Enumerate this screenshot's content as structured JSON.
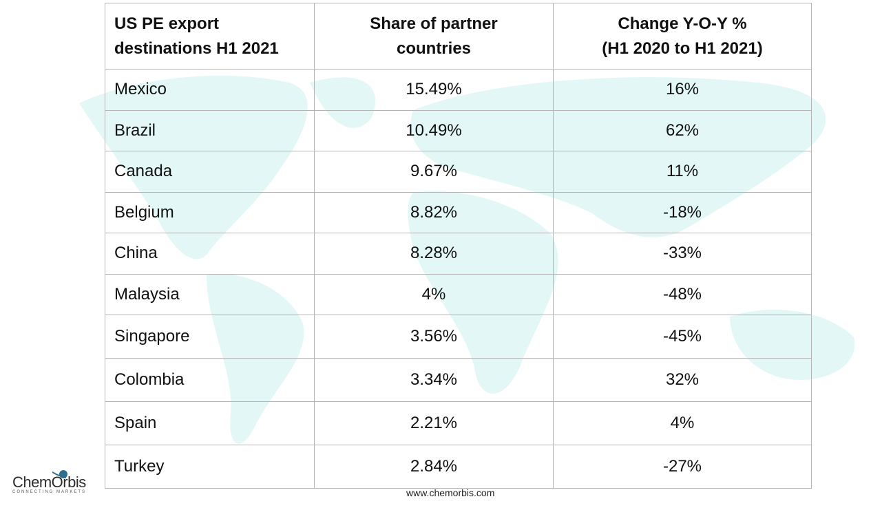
{
  "chart_data": {
    "type": "table",
    "columns": [
      "US PE export destinations H1 2021",
      "Share of partner countries",
      "Change Y-O-Y % (H1 2020 to H1 2021)"
    ],
    "header_lines": [
      [
        "US PE export",
        "destinations H1 2021"
      ],
      [
        "Share of partner",
        "countries"
      ],
      [
        "Change Y-O-Y %",
        "(H1 2020 to H1 2021)"
      ]
    ],
    "rows": [
      [
        "Mexico",
        "15.49%",
        "16%"
      ],
      [
        "Brazil",
        "10.49%",
        "62%"
      ],
      [
        "Canada",
        "9.67%",
        "11%"
      ],
      [
        "Belgium",
        "8.82%",
        "-18%"
      ],
      [
        "China",
        "8.28%",
        "-33%"
      ],
      [
        "Malaysia",
        "4%",
        "-48%"
      ],
      [
        "Singapore",
        "3.56%",
        "-45%"
      ],
      [
        "Colombia",
        "3.34%",
        "32%"
      ],
      [
        "Spain",
        "2.21%",
        "4%"
      ],
      [
        "Turkey",
        "2.84%",
        "-27%"
      ]
    ]
  },
  "footer": {
    "url": "www.chemorbis.com"
  },
  "logo": {
    "name": "ChemOrbis",
    "tagline": "CONNECTING MARKETS"
  },
  "colors": {
    "map": "#e3f7f7",
    "border": "#b4b4b4",
    "logo_accent": "#2e6e8e"
  }
}
